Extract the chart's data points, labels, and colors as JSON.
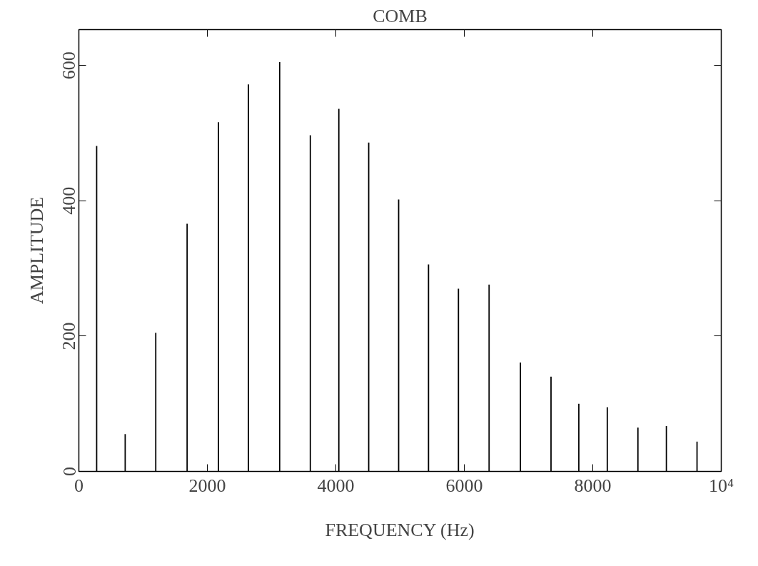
{
  "chart_data": {
    "type": "bar",
    "title": "COMB",
    "xlabel": "FREQUENCY (Hz)",
    "ylabel": "AMPLITUDE",
    "x": [
      277,
      721,
      1197,
      1685,
      2173,
      2639,
      3126,
      3603,
      4047,
      4512,
      4978,
      5443,
      5909,
      6386,
      6874,
      7350,
      7783,
      8226,
      8703,
      9146,
      9623
    ],
    "values": [
      481,
      55,
      205,
      366,
      516,
      572,
      605,
      497,
      536,
      486,
      402,
      306,
      270,
      276,
      161,
      140,
      100,
      95,
      65,
      67,
      44
    ],
    "color": "#000000",
    "xlim": [
      0,
      10000
    ],
    "xticks": [
      0,
      2000,
      4000,
      6000,
      8000,
      {
        "value": 10000,
        "label": "10⁴"
      }
    ],
    "ylim": [
      0,
      653
    ],
    "yticks": [
      0,
      200,
      400,
      600
    ],
    "grid": false
  }
}
